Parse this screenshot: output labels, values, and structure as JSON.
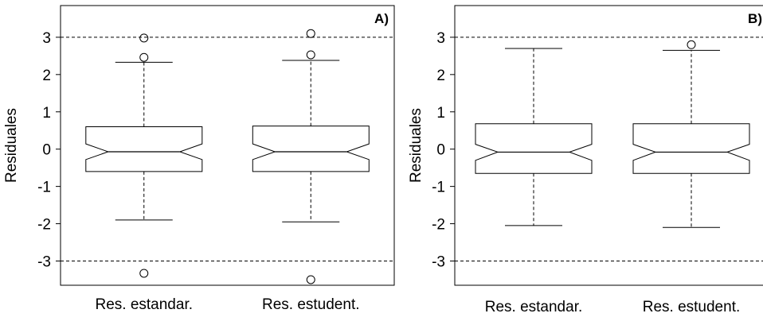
{
  "chart_data": [
    {
      "type": "boxplot",
      "panel_label": "A)",
      "ylabel": "Residuales",
      "xlabel": "",
      "ylim": [
        -3.65,
        3.85
      ],
      "yticks": [
        -3,
        -2,
        -1,
        0,
        1,
        2,
        3
      ],
      "ytick_labels": [
        "-3",
        "-2",
        "-1",
        "0",
        "1",
        "2",
        "3"
      ],
      "reference_lines": [
        3,
        -3
      ],
      "notched": true,
      "categories": [
        "Res. estandar.",
        "Res. estudent."
      ],
      "boxes": [
        {
          "whisker_low": -1.9,
          "q1": -0.6,
          "median": -0.07,
          "q3": 0.6,
          "whisker_high": 2.33,
          "notch_low": -0.28,
          "notch_high": 0.14,
          "outliers": [
            2.46,
            2.98,
            -3.33
          ]
        },
        {
          "whisker_low": -1.95,
          "q1": -0.6,
          "median": -0.07,
          "q3": 0.62,
          "whisker_high": 2.38,
          "notch_low": -0.28,
          "notch_high": 0.14,
          "outliers": [
            2.53,
            3.1,
            -3.5
          ]
        }
      ]
    },
    {
      "type": "boxplot",
      "panel_label": "B)",
      "ylabel": "Residuales",
      "xlabel": "",
      "ylim": [
        -3.65,
        3.85
      ],
      "yticks": [
        -3,
        -2,
        -1,
        0,
        1,
        2,
        3
      ],
      "ytick_labels": [
        "-3",
        "-2",
        "-1",
        "0",
        "1",
        "2",
        "3"
      ],
      "reference_lines": [
        3,
        -3
      ],
      "notched": true,
      "categories": [
        "Res. estandar.",
        "Res. estudent."
      ],
      "boxes": [
        {
          "whisker_low": -2.05,
          "q1": -0.65,
          "median": -0.08,
          "q3": 0.68,
          "whisker_high": 2.7,
          "notch_low": -0.3,
          "notch_high": 0.13,
          "outliers": []
        },
        {
          "whisker_low": -2.1,
          "q1": -0.65,
          "median": -0.08,
          "q3": 0.68,
          "whisker_high": 2.65,
          "notch_low": -0.3,
          "notch_high": 0.13,
          "outliers": [
            2.8
          ]
        }
      ]
    }
  ]
}
